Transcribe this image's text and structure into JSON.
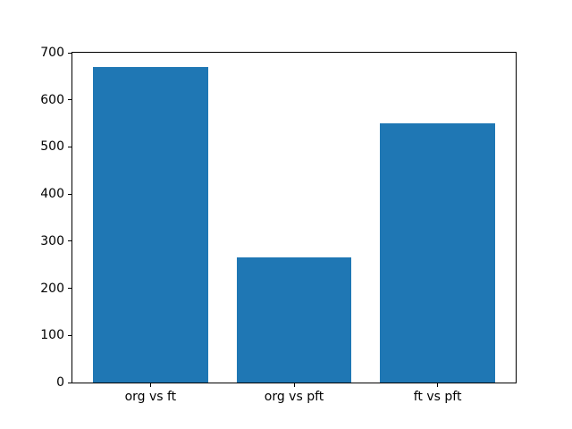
{
  "chart_data": {
    "type": "bar",
    "categories": [
      "org vs ft",
      "org vs pft",
      "ft vs pft"
    ],
    "values": [
      670,
      265,
      550
    ],
    "title": "",
    "xlabel": "",
    "ylabel": "",
    "ylim": [
      0,
      700
    ],
    "yticks": [
      0,
      100,
      200,
      300,
      400,
      500,
      600,
      700
    ],
    "bar_color": "#1f77b4",
    "axis_color": "#000000",
    "background_color": "#ffffff",
    "grid": false,
    "legend": null
  }
}
